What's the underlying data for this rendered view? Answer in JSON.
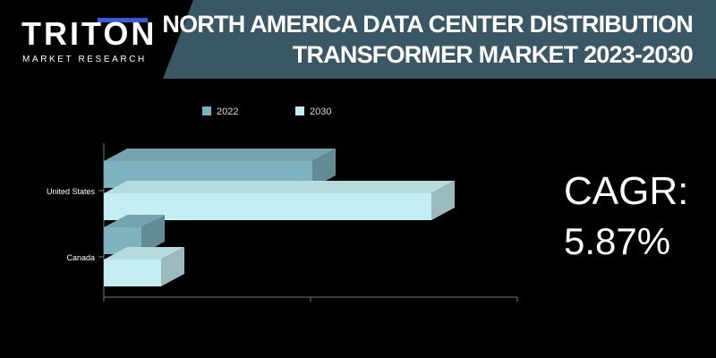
{
  "logo": {
    "name": "TRITON",
    "tagline": "MARKET RESEARCH"
  },
  "title": {
    "line1": "NORTH AMERICA DATA CENTER DISTRIBUTION",
    "line2": "TRANSFORMER MARKET 2023-2030"
  },
  "cagr": {
    "label": "CAGR:",
    "value": "5.87%"
  },
  "colors": {
    "series_2022": "#7fb2bf",
    "series_2030": "#c5eef2",
    "banner": "#3a5766",
    "logo_accent": "#3b5bdb"
  },
  "chart_data": {
    "type": "bar",
    "orientation": "horizontal",
    "style": "3d",
    "categories": [
      "United States",
      "Canada"
    ],
    "series": [
      {
        "name": "2022",
        "values": [
          233,
          42
        ]
      },
      {
        "name": "2030",
        "values": [
          366,
          64
        ]
      }
    ],
    "xlim": [
      0,
      462
    ],
    "x_tick_labels_visible": false,
    "legend_position": "top",
    "grid": false
  }
}
